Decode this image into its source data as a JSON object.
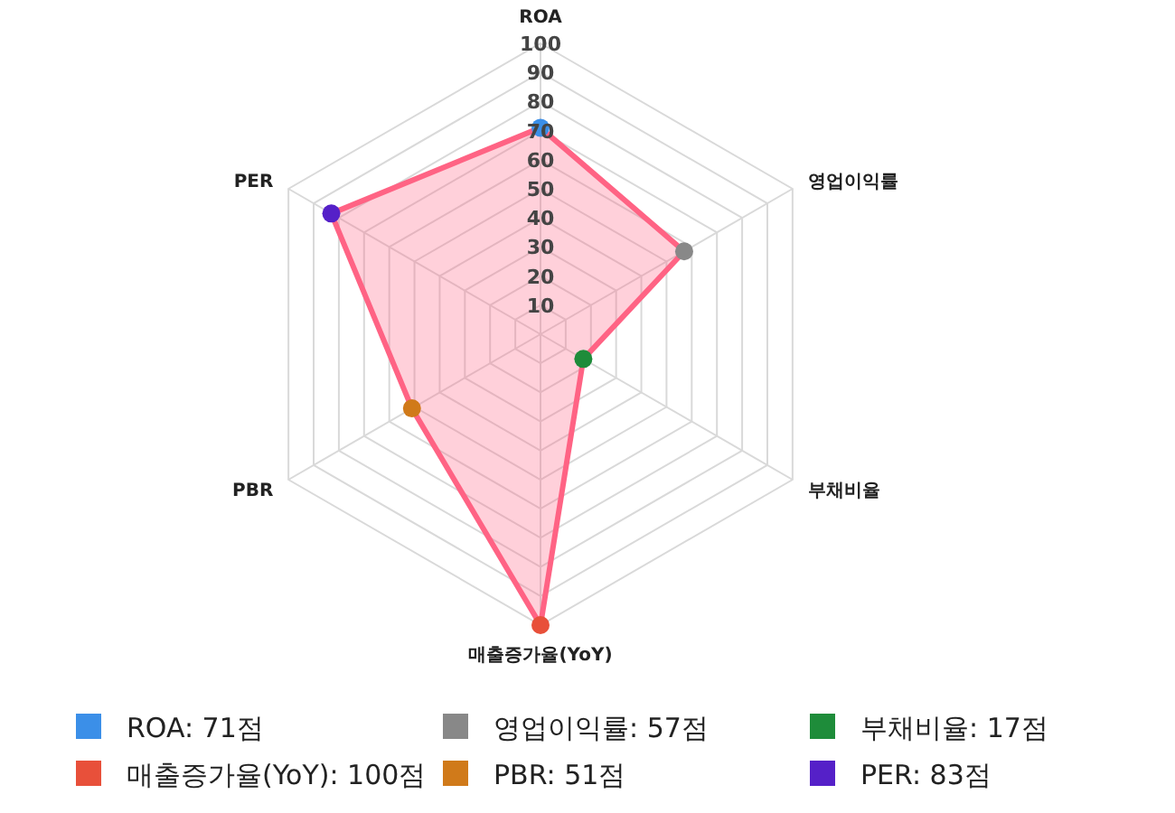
{
  "chart_data": {
    "type": "radar",
    "categories": [
      "ROA",
      "영업이익률",
      "부채비율",
      "매출증가율(YoY)",
      "PBR",
      "PER"
    ],
    "series": [
      {
        "color": "#ff6384",
        "values": [
          71,
          57,
          17,
          100,
          51,
          83
        ],
        "colors": [
          "#3b8fe8",
          "#888888",
          "#1e8c3a",
          "#e8503a",
          "#d07a1a",
          "#5520c8"
        ]
      }
    ],
    "annotations": [
      "ROA: 71점",
      "영업이익률: 57점",
      "부채비율: 17점",
      "매출증가율(YoY): 100점",
      "PBR: 51점",
      "PER: 83점"
    ],
    "ylim": [
      0,
      100
    ],
    "yticks": [
      10,
      20,
      30,
      40,
      50,
      60,
      70,
      80,
      90,
      100
    ],
    "grid": true,
    "marker": "circle"
  }
}
